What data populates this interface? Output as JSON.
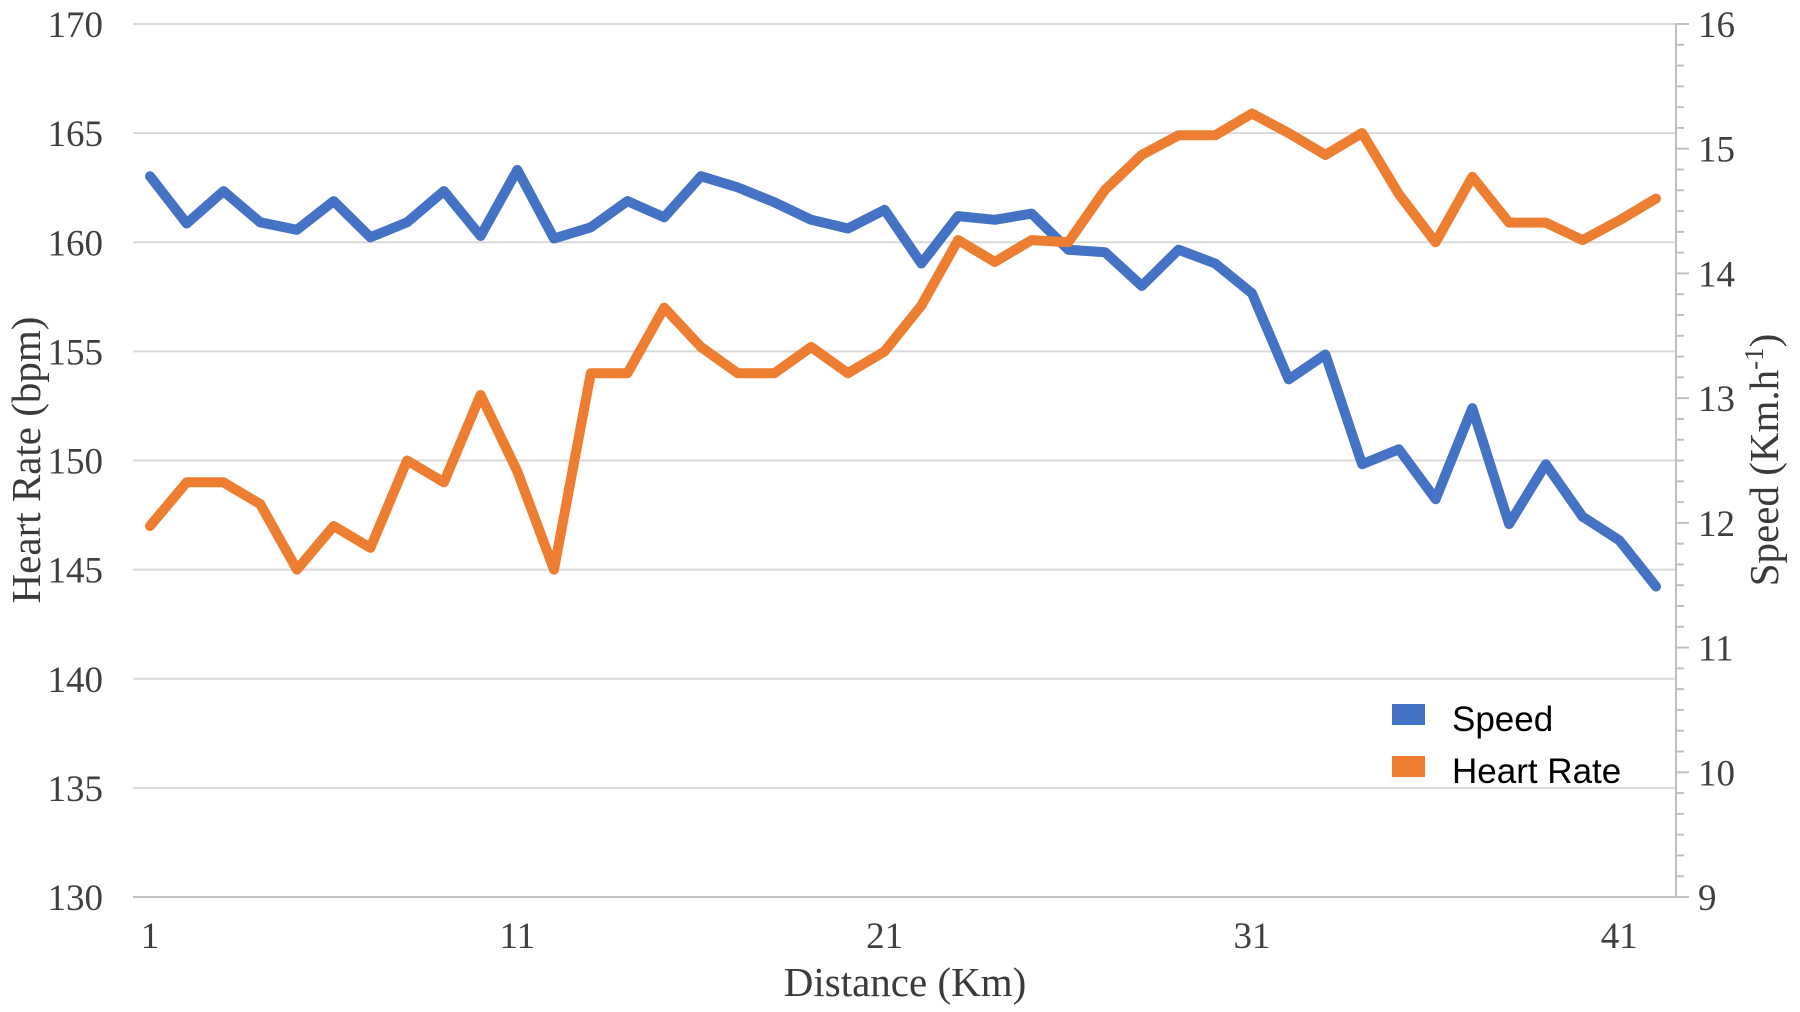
{
  "chart_data": {
    "type": "line",
    "title": "",
    "xlabel": "Distance (Km)",
    "x": [
      1,
      2,
      3,
      4,
      5,
      6,
      7,
      8,
      9,
      10,
      11,
      12,
      13,
      14,
      15,
      16,
      17,
      18,
      19,
      20,
      21,
      22,
      23,
      24,
      25,
      26,
      27,
      28,
      29,
      30,
      31,
      32,
      33,
      34,
      35,
      36,
      37,
      38,
      39,
      40,
      41,
      42
    ],
    "x_axis": {
      "tick_values": [
        1,
        11,
        21,
        31,
        41
      ]
    },
    "left_axis": {
      "label": "Heart Rate (bpm)",
      "min": 130,
      "max": 170,
      "step": 5,
      "ticks": [
        170,
        165,
        160,
        155,
        150,
        145,
        140,
        135,
        130
      ]
    },
    "right_axis": {
      "label": "Speed (Km.h-1)",
      "label_parts": {
        "pre": "Speed (Km.h",
        "sup": "-1",
        "post": ")"
      },
      "min": 9,
      "max": 16,
      "step": 1,
      "minor_divisions_per_major": 6,
      "ticks": [
        16,
        15,
        14,
        13,
        12,
        11,
        10,
        9
      ]
    },
    "grid": true,
    "legend": {
      "position": "inside-bottom-right",
      "items": [
        "Speed",
        "Heart Rate"
      ]
    },
    "series": [
      {
        "name": "Speed",
        "axis": "right",
        "color": "#4472C4",
        "values": [
          14.78,
          14.4,
          14.66,
          14.41,
          14.35,
          14.58,
          14.29,
          14.41,
          14.66,
          14.3,
          14.83,
          14.28,
          14.37,
          14.58,
          14.45,
          14.78,
          14.69,
          14.57,
          14.43,
          14.36,
          14.51,
          14.08,
          14.46,
          14.43,
          14.48,
          14.19,
          14.17,
          13.9,
          14.19,
          14.08,
          13.84,
          13.15,
          13.35,
          12.47,
          12.59,
          12.19,
          12.92,
          11.99,
          12.47,
          12.05,
          11.86,
          11.49
        ]
      },
      {
        "name": "Heart Rate",
        "axis": "left",
        "color": "#ED7D31",
        "values": [
          147,
          149,
          149,
          148,
          145,
          147,
          146,
          150,
          149,
          153,
          149.5,
          145,
          154,
          154,
          157,
          155.2,
          154,
          154,
          155.2,
          154,
          155,
          157.1,
          160.1,
          159.1,
          160.1,
          160,
          162.4,
          164,
          164.9,
          164.9,
          165.9,
          165,
          164,
          165,
          162.2,
          160,
          163,
          160.9,
          160.9,
          160.1,
          161,
          162
        ]
      }
    ]
  },
  "style": {
    "background": "#FFFFFF",
    "gridline_color": "#D9D9D9",
    "axis_line_color": "#BFBFBF",
    "tick_text_color": "#3F3F3F",
    "title_text_color": "#3A3A3A",
    "legend_text_color": "#000000",
    "line_width": 10
  }
}
